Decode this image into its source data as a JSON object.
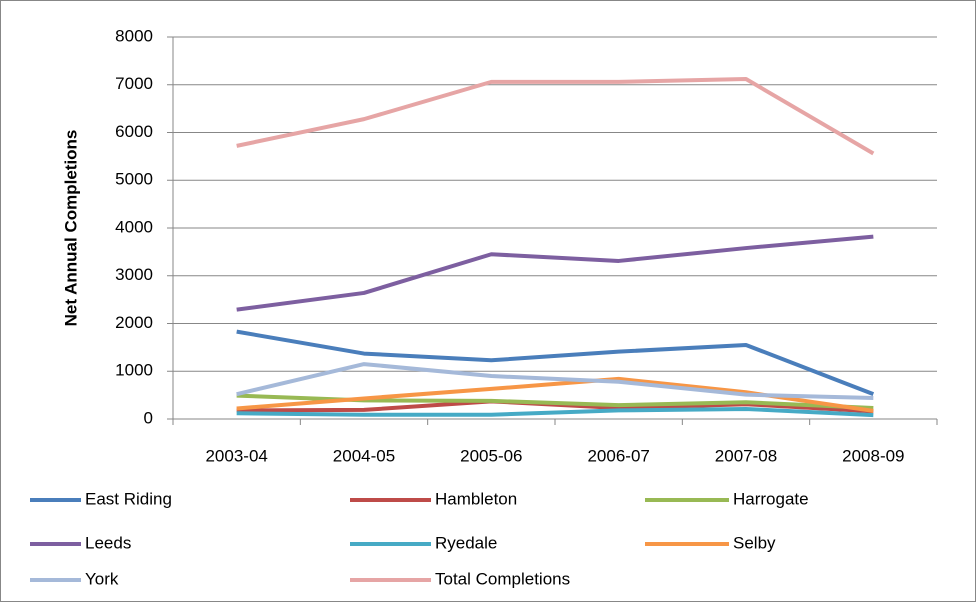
{
  "chart_data": {
    "type": "line",
    "y_label": "Net Annual Completions",
    "categories": [
      "2003-04",
      "2004-05",
      "2005-06",
      "2006-07",
      "2007-08",
      "2008-09"
    ],
    "series": [
      {
        "name": "East Riding",
        "color": "#4a7ebb",
        "values": [
          1830,
          1370,
          1230,
          1410,
          1550,
          520
        ]
      },
      {
        "name": "Hambleton",
        "color": "#be4b48",
        "values": [
          180,
          190,
          370,
          230,
          310,
          160
        ]
      },
      {
        "name": "Harrogate",
        "color": "#98b954",
        "values": [
          490,
          390,
          380,
          290,
          350,
          230
        ]
      },
      {
        "name": "Leeds",
        "color": "#7d5fa0",
        "values": [
          2290,
          2640,
          3450,
          3310,
          3580,
          3820
        ]
      },
      {
        "name": "Ryedale",
        "color": "#46aac5",
        "values": [
          120,
          90,
          90,
          180,
          210,
          80
        ]
      },
      {
        "name": "Selby",
        "color": "#f79646",
        "values": [
          220,
          430,
          630,
          840,
          560,
          170
        ]
      },
      {
        "name": "York",
        "color": "#a5b9d9",
        "values": [
          520,
          1150,
          900,
          780,
          510,
          440
        ]
      },
      {
        "name": "Total Completions",
        "color": "#e6a5a5",
        "values": [
          5720,
          6280,
          7060,
          7060,
          7120,
          5560
        ]
      }
    ],
    "ylim": [
      0,
      8000
    ],
    "yticks": [
      0,
      1000,
      2000,
      3000,
      4000,
      5000,
      6000,
      7000,
      8000
    ],
    "grid": true,
    "legend": "bottom"
  }
}
